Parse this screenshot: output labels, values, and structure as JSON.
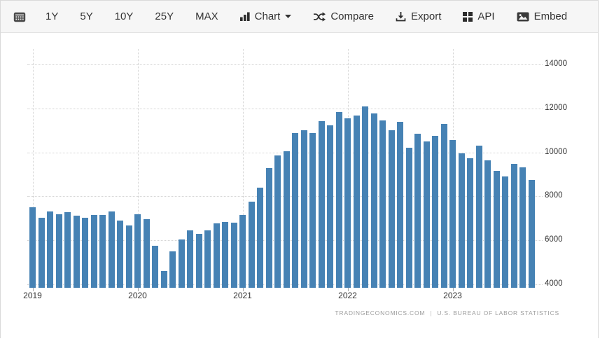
{
  "toolbar": {
    "ranges": [
      "1Y",
      "5Y",
      "10Y",
      "25Y",
      "MAX"
    ],
    "chart_label": "Chart",
    "compare_label": "Compare",
    "export_label": "Export",
    "api_label": "API",
    "embed_label": "Embed"
  },
  "attribution": {
    "left": "TRADINGECONOMICS.COM",
    "divider": "|",
    "right": "U.S. BUREAU OF LABOR STATISTICS"
  },
  "chart_data": {
    "type": "bar",
    "categories": [
      "2019-01",
      "2019-02",
      "2019-03",
      "2019-04",
      "2019-05",
      "2019-06",
      "2019-07",
      "2019-08",
      "2019-09",
      "2019-10",
      "2019-11",
      "2019-12",
      "2020-01",
      "2020-02",
      "2020-03",
      "2020-04",
      "2020-05",
      "2020-06",
      "2020-07",
      "2020-08",
      "2020-09",
      "2020-10",
      "2020-11",
      "2020-12",
      "2021-01",
      "2021-02",
      "2021-03",
      "2021-04",
      "2021-05",
      "2021-06",
      "2021-07",
      "2021-08",
      "2021-09",
      "2021-10",
      "2021-11",
      "2021-12",
      "2022-01",
      "2022-02",
      "2022-03",
      "2022-04",
      "2022-05",
      "2022-06",
      "2022-07",
      "2022-08",
      "2022-09",
      "2022-10",
      "2022-11",
      "2022-12",
      "2023-01",
      "2023-02",
      "2023-03",
      "2023-04",
      "2023-05",
      "2023-06",
      "2023-07",
      "2023-08",
      "2023-09",
      "2023-10"
    ],
    "values": [
      7490,
      7030,
      7310,
      7190,
      7280,
      7120,
      7030,
      7150,
      7140,
      7310,
      6900,
      6660,
      7170,
      6960,
      5750,
      4620,
      5500,
      6050,
      6450,
      6280,
      6450,
      6770,
      6850,
      6800,
      7140,
      7750,
      8390,
      9290,
      9850,
      10060,
      10890,
      11000,
      10890,
      11420,
      11230,
      11850,
      11550,
      11660,
      12080,
      11770,
      11450,
      11000,
      11400,
      10200,
      10860,
      10490,
      10760,
      11280,
      10550,
      9950,
      9740,
      10320,
      9630,
      9170,
      8920,
      9490,
      9330,
      8730
    ],
    "x_tick_labels": [
      "2019",
      "2020",
      "2021",
      "2022",
      "2023"
    ],
    "x_tick_positions": [
      0,
      12,
      24,
      36,
      48
    ],
    "y_ticks": [
      4000,
      6000,
      8000,
      10000,
      12000,
      14000
    ],
    "ylim": [
      3840,
      14700
    ],
    "axis_side": "right",
    "grid": "dotted",
    "legend": "none",
    "bar_color": "#4682b4",
    "source": "TRADINGECONOMICS.COM | U.S. BUREAU OF LABOR STATISTICS"
  }
}
